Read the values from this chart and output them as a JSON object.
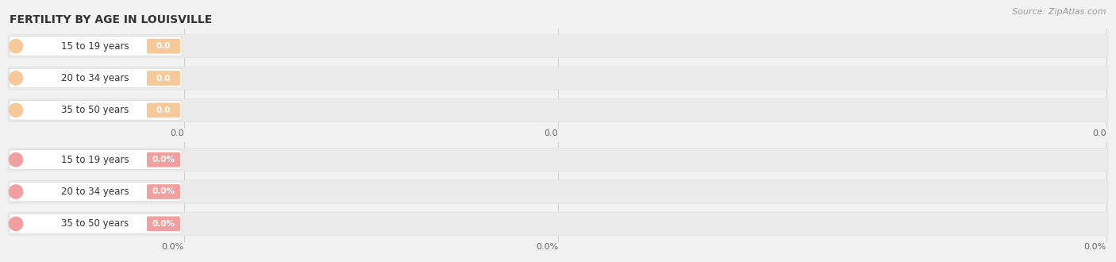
{
  "title": "FERTILITY BY AGE IN LOUISVILLE",
  "source": "Source: ZipAtlas.com",
  "bg_color": "#f2f2f2",
  "top_section": {
    "categories": [
      "15 to 19 years",
      "20 to 34 years",
      "35 to 50 years"
    ],
    "values": [
      0.0,
      0.0,
      0.0
    ],
    "bar_color": "#f5c99a",
    "is_pct": false,
    "tick_labels": [
      "0.0",
      "0.0",
      "0.0"
    ]
  },
  "bottom_section": {
    "categories": [
      "15 to 19 years",
      "20 to 34 years",
      "35 to 50 years"
    ],
    "values": [
      0.0,
      0.0,
      0.0
    ],
    "bar_color": "#f0a0a0",
    "is_pct": true,
    "tick_labels": [
      "0.0%",
      "0.0%",
      "0.0%"
    ]
  },
  "title_fontsize": 10,
  "source_fontsize": 8,
  "label_fontsize": 8.5,
  "badge_fontsize": 7.5,
  "tick_fontsize": 8
}
